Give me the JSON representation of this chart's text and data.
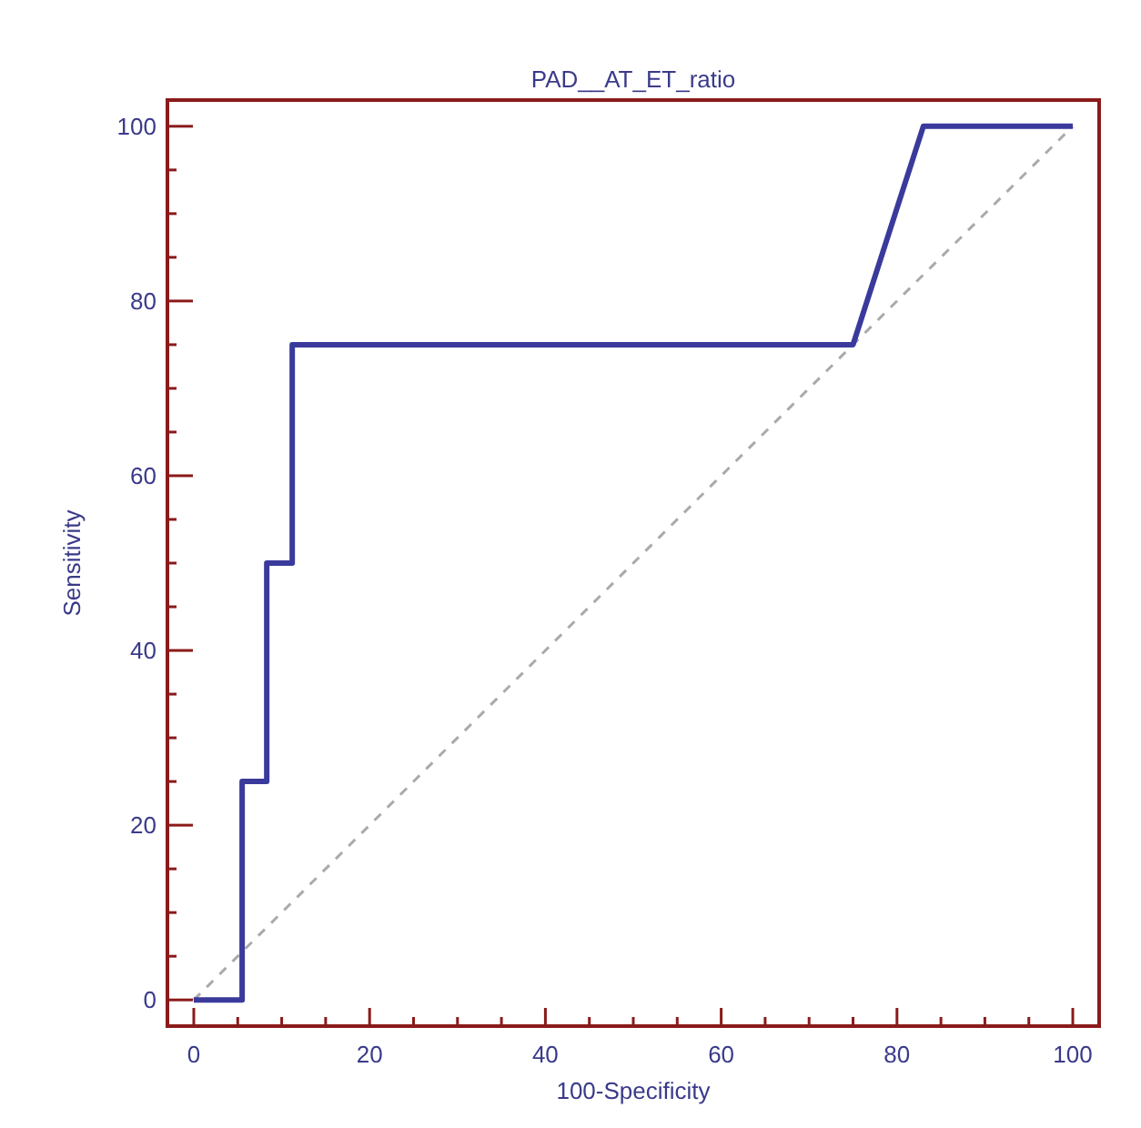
{
  "chart_data": {
    "type": "line",
    "title": "PAD__AT_ET_ratio",
    "xlabel": "100-Specificity",
    "ylabel": "Sensitivity",
    "xlim": [
      -3,
      103
    ],
    "ylim": [
      -3,
      103
    ],
    "xticks": [
      0,
      {
        "value": 5,
        "label": null
      },
      {
        "value": 10,
        "label": null
      },
      {
        "value": 15,
        "label": null
      },
      20,
      {
        "value": 25,
        "label": null
      },
      {
        "value": 30,
        "label": null
      },
      {
        "value": 35,
        "label": null
      },
      40,
      {
        "value": 45,
        "label": null
      },
      {
        "value": 50,
        "label": null
      },
      {
        "value": 55,
        "label": null
      },
      60,
      {
        "value": 65,
        "label": null
      },
      {
        "value": 70,
        "label": null
      },
      {
        "value": 75,
        "label": null
      },
      80,
      {
        "value": 85,
        "label": null
      },
      {
        "value": 90,
        "label": null
      },
      {
        "value": 95,
        "label": null
      },
      100
    ],
    "yticks": [
      0,
      {
        "value": 5,
        "label": null
      },
      {
        "value": 10,
        "label": null
      },
      {
        "value": 15,
        "label": null
      },
      20,
      {
        "value": 25,
        "label": null
      },
      {
        "value": 30,
        "label": null
      },
      {
        "value": 35,
        "label": null
      },
      40,
      {
        "value": 45,
        "label": null
      },
      {
        "value": 50,
        "label": null
      },
      {
        "value": 55,
        "label": null
      },
      60,
      {
        "value": 65,
        "label": null
      },
      {
        "value": 70,
        "label": null
      },
      {
        "value": 75,
        "label": null
      },
      80,
      {
        "value": 85,
        "label": null
      },
      {
        "value": 90,
        "label": null
      },
      {
        "value": 95,
        "label": null
      },
      100
    ],
    "grid": false,
    "series": [
      {
        "color": "#aaaaaa",
        "line_style": "dashed",
        "x": [
          0,
          100
        ],
        "values": [
          0,
          100
        ]
      },
      {
        "color": "#3a3a9c",
        "line_style": "solid",
        "x": [
          0,
          5.5,
          5.5,
          8.3,
          8.3,
          11.2,
          11.2,
          75,
          83,
          100
        ],
        "values": [
          0,
          0,
          25,
          25,
          50,
          50,
          75,
          75,
          100,
          100
        ]
      }
    ]
  }
}
